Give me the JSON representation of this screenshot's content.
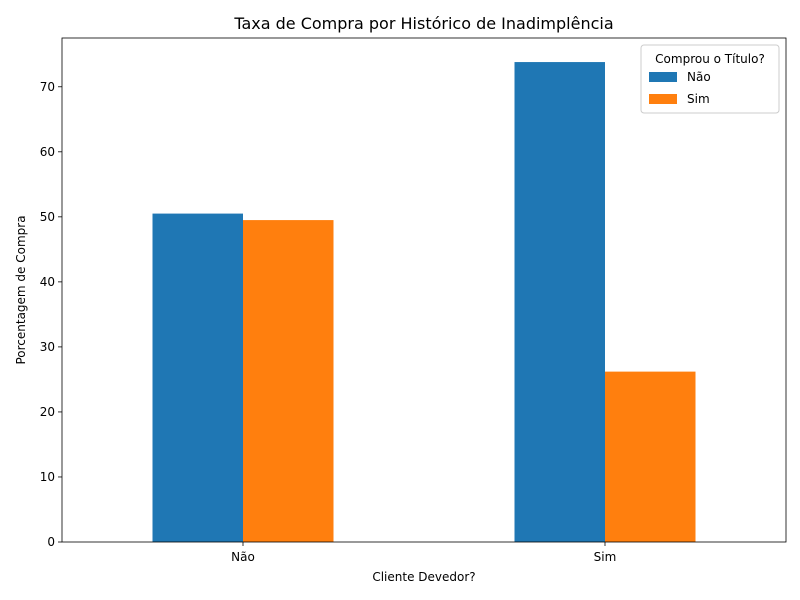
{
  "chart_data": {
    "type": "bar",
    "title": "Taxa de Compra por Histórico de Inadimplência",
    "xlabel": "Cliente Devedor?",
    "ylabel": "Porcentagem de Compra",
    "categories": [
      "Não",
      "Sim"
    ],
    "series": [
      {
        "name": "Não",
        "values": [
          50.5,
          73.8
        ]
      },
      {
        "name": "Sim",
        "values": [
          49.5,
          26.2
        ]
      }
    ],
    "ylim": [
      0,
      77.5
    ],
    "yticks": [
      0,
      10,
      20,
      30,
      40,
      50,
      60,
      70
    ],
    "grid": false,
    "legend": {
      "title": "Comprou o Título?",
      "placement": "top-right"
    },
    "colors": [
      "#1f77b4",
      "#ff7f0e"
    ]
  }
}
